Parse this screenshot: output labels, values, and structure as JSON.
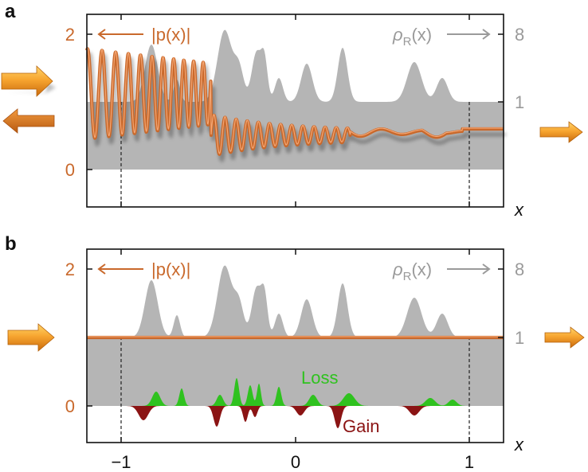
{
  "panels": [
    {
      "letter": "a",
      "p_label": "|p(x)|",
      "rho_label": "ρR(x)",
      "left_ticks": [
        "2",
        "0"
      ],
      "right_ticks": [
        "8",
        "1"
      ],
      "x_axis_label": "x"
    },
    {
      "letter": "b",
      "p_label": "|p(x)|",
      "rho_label": "ρR(x)",
      "left_ticks": [
        "2",
        "0"
      ],
      "right_ticks": [
        "8",
        "1"
      ],
      "x_axis_label": "x",
      "loss_label": "Loss",
      "gain_label": "Gain"
    }
  ],
  "x_tick_labels": [
    "−1",
    "0",
    "1"
  ],
  "colors": {
    "wave": "#c9692c",
    "density": "#b5b5b5",
    "loss": "#2fc21f",
    "gain": "#8b1414",
    "arrow_light": "#f7b23a",
    "arrow_dark": "#d9730f"
  }
}
